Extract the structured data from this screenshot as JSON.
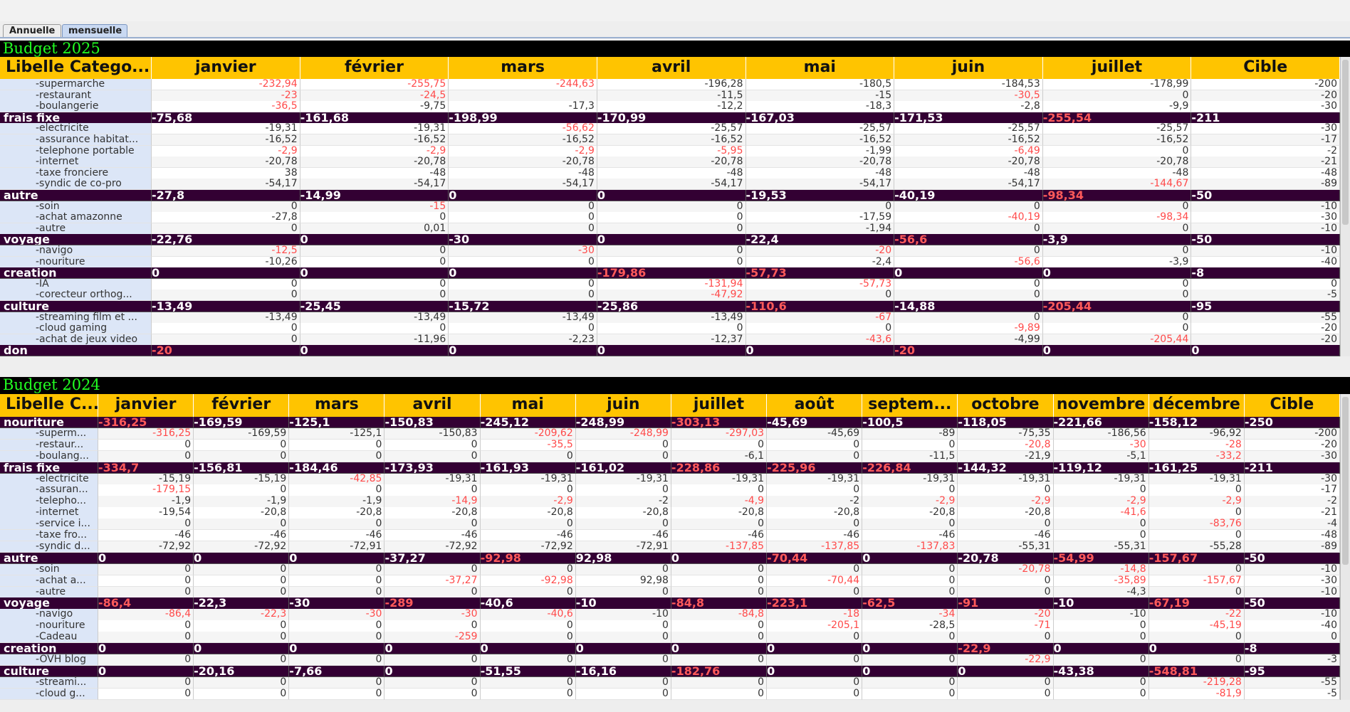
{
  "tabs": [
    "Annuelle",
    "mensuelle"
  ],
  "tables": [
    {
      "title": "Budget 2025",
      "columns": [
        "Libelle Catego...",
        "janvier",
        "février",
        "mars",
        "avril",
        "mai",
        "juin",
        "juillet",
        "Cible"
      ],
      "rows": [
        {
          "label": "-supermarche",
          "cells": [
            "-232,94",
            "-255,75",
            "-244,63",
            "-196,28",
            "-180,5",
            "-184,53",
            "-178,99",
            "-200"
          ],
          "red": [
            0,
            1,
            2
          ]
        },
        {
          "label": "-restaurant",
          "cells": [
            "-23",
            "-24,5",
            null,
            "-11,5",
            "-15",
            "-30,5",
            "0",
            "-20"
          ],
          "red": [
            0,
            1,
            5
          ]
        },
        {
          "label": "-boulangerie",
          "cells": [
            "-36,5",
            "-9,75",
            "-17,3",
            "-12,2",
            "-18,3",
            "-2,8",
            "-9,9",
            "-30"
          ],
          "red": [
            0
          ]
        },
        {
          "label": "frais fixe",
          "group": true,
          "cells": [
            "-75,68",
            "-161,68",
            "-198,99",
            "-170,99",
            "-167,03",
            "-171,53",
            "-255,54",
            "-211"
          ],
          "red": [
            6
          ]
        },
        {
          "label": "-electricite",
          "cells": [
            "-19,31",
            "-19,31",
            "-56,62",
            "-25,57",
            "-25,57",
            "-25,57",
            "-25,57",
            "-30"
          ],
          "red": [
            2
          ]
        },
        {
          "label": "-assurance habitat...",
          "cells": [
            "-16,52",
            "-16,52",
            "-16,52",
            "-16,52",
            "-16,52",
            "-16,52",
            "-16,52",
            "-17"
          ],
          "red": []
        },
        {
          "label": "-telephone portable",
          "cells": [
            "-2,9",
            "-2,9",
            "-2,9",
            "-5,95",
            "-1,99",
            "-6,49",
            "0",
            "-2"
          ],
          "red": [
            0,
            1,
            2,
            3,
            5
          ]
        },
        {
          "label": "-internet",
          "cells": [
            "-20,78",
            "-20,78",
            "-20,78",
            "-20,78",
            "-20,78",
            "-20,78",
            "-20,78",
            "-21"
          ],
          "red": []
        },
        {
          "label": "-taxe fronciere",
          "cells": [
            "38",
            "-48",
            "-48",
            "-48",
            "-48",
            "-48",
            "-48",
            "-48"
          ],
          "red": []
        },
        {
          "label": "-syndic de co-pro",
          "cells": [
            "-54,17",
            "-54,17",
            "-54,17",
            "-54,17",
            "-54,17",
            "-54,17",
            "-144,67",
            "-89"
          ],
          "red": [
            6
          ]
        },
        {
          "label": "autre",
          "group": true,
          "cells": [
            "-27,8",
            "-14,99",
            "0",
            "0",
            "-19,53",
            "-40,19",
            "-98,34",
            "-50"
          ],
          "red": [
            6
          ]
        },
        {
          "label": "-soin",
          "cells": [
            "0",
            "-15",
            "0",
            "0",
            "0",
            "0",
            "0",
            "-10"
          ],
          "red": [
            1
          ]
        },
        {
          "label": "-achat amazonne",
          "cells": [
            "-27,8",
            "0",
            "0",
            "0",
            "-17,59",
            "-40,19",
            "-98,34",
            "-30"
          ],
          "red": [
            5,
            6
          ]
        },
        {
          "label": "-autre",
          "cells": [
            "0",
            "0,01",
            "0",
            "0",
            "-1,94",
            "0",
            "0",
            "-10"
          ],
          "red": []
        },
        {
          "label": "voyage",
          "group": true,
          "cells": [
            "-22,76",
            "0",
            "-30",
            "0",
            "-22,4",
            "-56,6",
            "-3,9",
            "-50"
          ],
          "red": [
            5
          ]
        },
        {
          "label": "-navigo",
          "cells": [
            "-12,5",
            "0",
            "-30",
            "0",
            "-20",
            "0",
            "0",
            "-10"
          ],
          "red": [
            0,
            2,
            4
          ]
        },
        {
          "label": "-nouriture",
          "cells": [
            "-10,26",
            "0",
            "0",
            "0",
            "-2,4",
            "-56,6",
            "-3,9",
            "-40"
          ],
          "red": [
            5
          ]
        },
        {
          "label": "creation",
          "group": true,
          "cells": [
            "0",
            "0",
            "0",
            "-179,86",
            "-57,73",
            "0",
            "0",
            "-8"
          ],
          "red": [
            3,
            4
          ]
        },
        {
          "label": "-IA",
          "cells": [
            "0",
            "0",
            "0",
            "-131,94",
            "-57,73",
            "0",
            "0",
            "0"
          ],
          "red": [
            3,
            4
          ]
        },
        {
          "label": "-corecteur orthog...",
          "cells": [
            "0",
            "0",
            "0",
            "-47,92",
            "0",
            "0",
            "0",
            "-5"
          ],
          "red": [
            3
          ]
        },
        {
          "label": "culture",
          "group": true,
          "cells": [
            "-13,49",
            "-25,45",
            "-15,72",
            "-25,86",
            "-110,6",
            "-14,88",
            "-205,44",
            "-95"
          ],
          "red": [
            4,
            6
          ]
        },
        {
          "label": "-streaming film et ...",
          "cells": [
            "-13,49",
            "-13,49",
            "-13,49",
            "-13,49",
            "-67",
            "0",
            "0",
            "-55"
          ],
          "red": [
            4
          ]
        },
        {
          "label": "-cloud gaming",
          "cells": [
            "0",
            "0",
            "0",
            "0",
            "0",
            "-9,89",
            "0",
            "-20"
          ],
          "red": [
            5
          ]
        },
        {
          "label": "-achat de jeux video",
          "cells": [
            "0",
            "-11,96",
            "-2,23",
            "-12,37",
            "-43,6",
            "-4,99",
            "-205,44",
            "-20"
          ],
          "red": [
            4,
            6
          ]
        },
        {
          "label": "don",
          "group": true,
          "cells": [
            "-20",
            "0",
            "0",
            "0",
            "0",
            "-20",
            "0",
            "0"
          ],
          "red": [
            0,
            5
          ]
        }
      ]
    },
    {
      "title": "Budget 2024",
      "columns": [
        "Libelle C...",
        "janvier",
        "février",
        "mars",
        "avril",
        "mai",
        "juin",
        "juillet",
        "août",
        "septem...",
        "octobre",
        "novembre",
        "décembre",
        "Cible"
      ],
      "rows": [
        {
          "label": "nouriture",
          "group": true,
          "cells": [
            "-316,25",
            "-169,59",
            "-125,1",
            "-150,83",
            "-245,12",
            "-248,99",
            "-303,13",
            "-45,69",
            "-100,5",
            "-118,05",
            "-221,66",
            "-158,12",
            "-250"
          ],
          "red": [
            0,
            6
          ]
        },
        {
          "label": "-superm...",
          "cells": [
            "-316,25",
            "-169,59",
            "-125,1",
            "-150,83",
            "-209,62",
            "-248,99",
            "-297,03",
            "-45,69",
            "-89",
            "-75,35",
            "-186,56",
            "-96,92",
            "-200"
          ],
          "red": [
            0,
            4,
            5,
            6
          ]
        },
        {
          "label": "-restaur...",
          "cells": [
            "0",
            "0",
            "0",
            "0",
            "-35,5",
            "0",
            "0",
            "0",
            "0",
            "-20,8",
            "-30",
            "-28",
            "-20"
          ],
          "red": [
            4,
            9,
            10,
            11
          ]
        },
        {
          "label": "-boulang...",
          "cells": [
            "0",
            "0",
            "0",
            "0",
            "0",
            "0",
            "-6,1",
            "0",
            "-11,5",
            "-21,9",
            "-5,1",
            "-33,2",
            "-30"
          ],
          "red": [
            11
          ]
        },
        {
          "label": "frais fixe",
          "group": true,
          "cells": [
            "-334,7",
            "-156,81",
            "-184,46",
            "-173,93",
            "-161,93",
            "-161,02",
            "-228,86",
            "-225,96",
            "-226,84",
            "-144,32",
            "-119,12",
            "-161,25",
            "-211"
          ],
          "red": [
            0,
            6,
            7,
            8
          ]
        },
        {
          "label": "-electricite",
          "cells": [
            "-15,19",
            "-15,19",
            "-42,85",
            "-19,31",
            "-19,31",
            "-19,31",
            "-19,31",
            "-19,31",
            "-19,31",
            "-19,31",
            "-19,31",
            "-19,31",
            "-30"
          ],
          "red": [
            2
          ]
        },
        {
          "label": "-assuran...",
          "cells": [
            "-179,15",
            "0",
            "0",
            "0",
            "0",
            "0",
            "0",
            "0",
            "0",
            "0",
            "0",
            "0",
            "-17"
          ],
          "red": [
            0
          ]
        },
        {
          "label": "-telepho...",
          "cells": [
            "-1,9",
            "-1,9",
            "-1,9",
            "-14,9",
            "-2,9",
            "-2",
            "-4,9",
            "-2",
            "-2,9",
            "-2,9",
            "-2,9",
            "-2,9",
            "-2"
          ],
          "red": [
            3,
            4,
            6,
            8,
            9,
            10,
            11
          ]
        },
        {
          "label": "-internet",
          "cells": [
            "-19,54",
            "-20,8",
            "-20,8",
            "-20,8",
            "-20,8",
            "-20,8",
            "-20,8",
            "-20,8",
            "-20,8",
            "-20,8",
            "-41,6",
            "0",
            "-21"
          ],
          "red": [
            10
          ]
        },
        {
          "label": "-service i...",
          "cells": [
            "0",
            "0",
            "0",
            "0",
            "0",
            "0",
            "0",
            "0",
            "0",
            "0",
            "0",
            "-83,76",
            "-4"
          ],
          "red": [
            11
          ]
        },
        {
          "label": "-taxe fro...",
          "cells": [
            "-46",
            "-46",
            "-46",
            "-46",
            "-46",
            "-46",
            "-46",
            "-46",
            "-46",
            "-46",
            "0",
            "0",
            "-48"
          ],
          "red": []
        },
        {
          "label": "-syndic d...",
          "cells": [
            "-72,92",
            "-72,92",
            "-72,91",
            "-72,92",
            "-72,92",
            "-72,91",
            "-137,85",
            "-137,85",
            "-137,83",
            "-55,31",
            "-55,31",
            "-55,28",
            "-89"
          ],
          "red": [
            6,
            7,
            8
          ]
        },
        {
          "label": "autre",
          "group": true,
          "cells": [
            "0",
            "0",
            "0",
            "-37,27",
            "-92,98",
            "92,98",
            "0",
            "-70,44",
            "0",
            "-20,78",
            "-54,99",
            "-157,67",
            "-50"
          ],
          "red": [
            4,
            7,
            10,
            11
          ]
        },
        {
          "label": "-soin",
          "cells": [
            "0",
            "0",
            "0",
            "0",
            "0",
            "0",
            "0",
            "0",
            "0",
            "-20,78",
            "-14,8",
            "0",
            "-10"
          ],
          "red": [
            9,
            10
          ]
        },
        {
          "label": "-achat a...",
          "cells": [
            "0",
            "0",
            "0",
            "-37,27",
            "-92,98",
            "92,98",
            "0",
            "-70,44",
            "0",
            "0",
            "-35,89",
            "-157,67",
            "-30"
          ],
          "red": [
            3,
            4,
            7,
            10,
            11
          ]
        },
        {
          "label": "-autre",
          "cells": [
            "0",
            "0",
            "0",
            "0",
            "0",
            "0",
            "0",
            "0",
            "0",
            "0",
            "-4,3",
            "0",
            "-10"
          ],
          "red": []
        },
        {
          "label": "voyage",
          "group": true,
          "cells": [
            "-86,4",
            "-22,3",
            "-30",
            "-289",
            "-40,6",
            "-10",
            "-84,8",
            "-223,1",
            "-62,5",
            "-91",
            "-10",
            "-67,19",
            "-50"
          ],
          "red": [
            0,
            3,
            6,
            7,
            8,
            9,
            11
          ]
        },
        {
          "label": "-navigo",
          "cells": [
            "-86,4",
            "-22,3",
            "-30",
            "-30",
            "-40,6",
            "-10",
            "-84,8",
            "-18",
            "-34",
            "-20",
            "-10",
            "-22",
            "-10"
          ],
          "red": [
            0,
            1,
            2,
            3,
            4,
            6,
            7,
            8,
            9,
            11
          ]
        },
        {
          "label": "-nouriture",
          "cells": [
            "0",
            "0",
            "0",
            "0",
            "0",
            "0",
            "0",
            "-205,1",
            "-28,5",
            "-71",
            "0",
            "-45,19",
            "-40"
          ],
          "red": [
            7,
            9,
            11
          ]
        },
        {
          "label": "-Cadeau",
          "cells": [
            "0",
            "0",
            "0",
            "-259",
            "0",
            "0",
            "0",
            "0",
            "0",
            "0",
            "0",
            "0",
            "0"
          ],
          "red": [
            3
          ]
        },
        {
          "label": "creation",
          "group": true,
          "cells": [
            "0",
            "0",
            "0",
            "0",
            "0",
            "0",
            "0",
            "0",
            "0",
            "-22,9",
            "0",
            "0",
            "-8"
          ],
          "red": [
            9
          ]
        },
        {
          "label": "-OVH blog",
          "cells": [
            "0",
            "0",
            "0",
            "0",
            "0",
            "0",
            "0",
            "0",
            "0",
            "-22,9",
            "0",
            "0",
            "-3"
          ],
          "red": [
            9
          ]
        },
        {
          "label": "culture",
          "group": true,
          "cells": [
            "0",
            "-20,16",
            "-7,66",
            "0",
            "-51,55",
            "-16,16",
            "-182,76",
            "0",
            "0",
            "0",
            "-43,38",
            "-548,81",
            "-95"
          ],
          "red": [
            6,
            11
          ]
        },
        {
          "label": "-streami...",
          "cells": [
            "0",
            "0",
            "0",
            "0",
            "0",
            "0",
            "0",
            "0",
            "0",
            "0",
            "0",
            "-219,28",
            "-55"
          ],
          "red": [
            11
          ]
        },
        {
          "label": "-cloud g...",
          "cells": [
            "0",
            "0",
            "0",
            "0",
            "0",
            "0",
            "0",
            "0",
            "0",
            "0",
            "0",
            "-81,9",
            "-5"
          ],
          "red": [
            11
          ]
        }
      ]
    }
  ]
}
